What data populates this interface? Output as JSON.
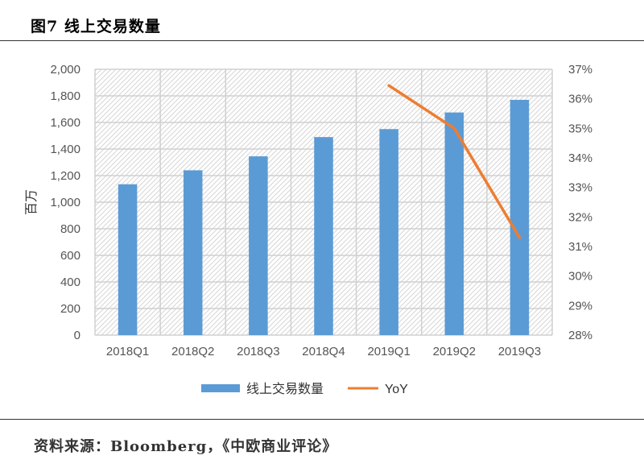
{
  "figure": {
    "title": "图7  线上交易数量",
    "source_prefix": "资料来源：",
    "source_text": "Bloomberg，《中欧商业评论》"
  },
  "chart_data": {
    "type": "bar",
    "categories": [
      "2018Q1",
      "2018Q2",
      "2018Q3",
      "2018Q4",
      "2019Q1",
      "2019Q2",
      "2019Q3"
    ],
    "series": [
      {
        "name": "线上交易数量",
        "type": "bar",
        "axis": "left",
        "values": [
          1135,
          1240,
          1345,
          1490,
          1550,
          1675,
          1770
        ],
        "color": "#5b9bd5"
      },
      {
        "name": "YoY",
        "type": "line",
        "axis": "right",
        "values": [
          null,
          null,
          null,
          null,
          36.45,
          35.0,
          31.3
        ],
        "color": "#ed7d31"
      }
    ],
    "ylabel": "百万",
    "ylim": [
      0,
      2000
    ],
    "yticks": [
      "0",
      "200",
      "400",
      "600",
      "800",
      "1,000",
      "1,200",
      "1,400",
      "1,600",
      "1,800",
      "2,000"
    ],
    "y2lim": [
      28,
      37
    ],
    "y2ticks": [
      "28%",
      "29%",
      "30%",
      "31%",
      "32%",
      "33%",
      "34%",
      "35%",
      "36%",
      "37%"
    ],
    "legend": "bottom",
    "grid": true,
    "plot_background": "hatched"
  }
}
